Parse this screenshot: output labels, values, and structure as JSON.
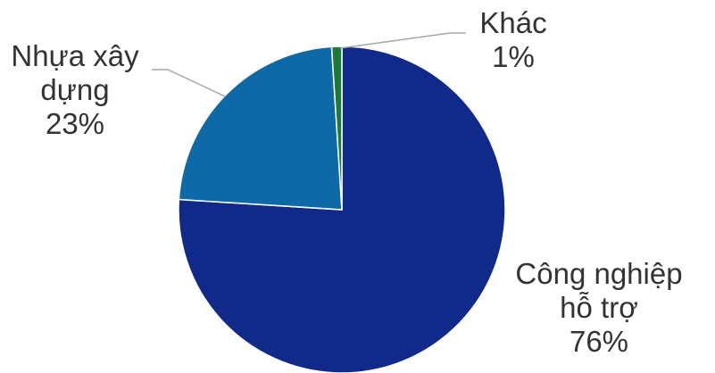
{
  "chart_data": {
    "type": "pie",
    "title": "",
    "legend": "none",
    "slices": [
      {
        "category": "Công nghiệp hỗ trợ",
        "label_lines": [
          "Công nghiệp",
          "hỗ trợ"
        ],
        "value": 76,
        "value_label": "76%",
        "color": "#112a8a"
      },
      {
        "category": "Nhựa xây dựng",
        "label_lines": [
          "Nhựa xây",
          "dựng"
        ],
        "value": 23,
        "value_label": "23%",
        "color": "#0d6aa6"
      },
      {
        "category": "Khác",
        "label_lines": [
          "Khác"
        ],
        "value": 1,
        "value_label": "1%",
        "color": "#1f7a3a"
      }
    ],
    "leader_line_color": "#a6a6a6",
    "label_color": "#333333"
  }
}
